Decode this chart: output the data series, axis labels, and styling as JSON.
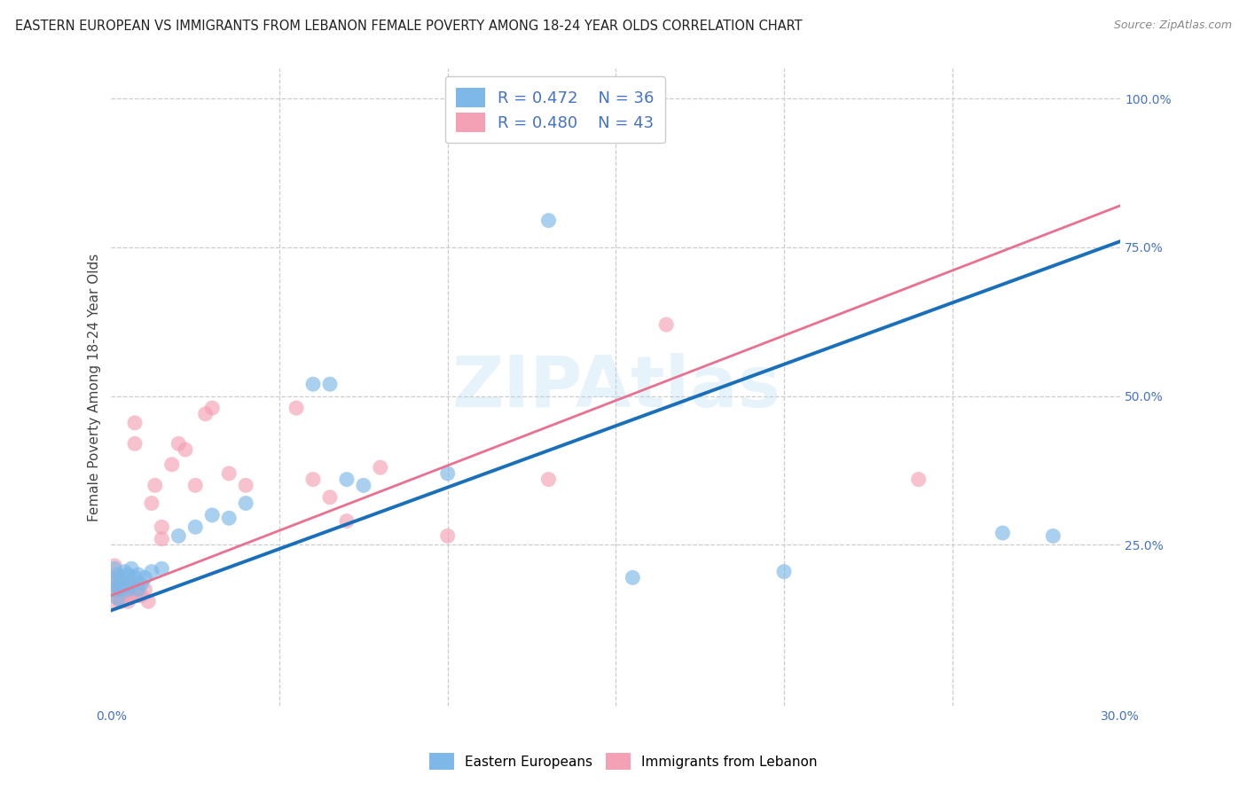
{
  "title": "EASTERN EUROPEAN VS IMMIGRANTS FROM LEBANON FEMALE POVERTY AMONG 18-24 YEAR OLDS CORRELATION CHART",
  "source": "Source: ZipAtlas.com",
  "ylabel": "Female Poverty Among 18-24 Year Olds",
  "xlim": [
    0.0,
    0.3
  ],
  "ylim": [
    -0.02,
    1.05
  ],
  "yticks_right": [
    0.25,
    0.5,
    0.75,
    1.0
  ],
  "ytick_labels_right": [
    "25.0%",
    "50.0%",
    "75.0%",
    "100.0%"
  ],
  "blue_color": "#7db8e8",
  "pink_color": "#f4a0b5",
  "blue_line_color": "#1a6fba",
  "pink_line_color": "#e87090",
  "blue_R": 0.472,
  "blue_N": 36,
  "pink_R": 0.48,
  "pink_N": 43,
  "watermark": "ZIPAtlas",
  "background_color": "#ffffff",
  "title_fontsize": 10.5,
  "axis_label_fontsize": 11,
  "tick_fontsize": 10,
  "legend_fontsize": 13,
  "blue_trend_x0": 0.0,
  "blue_trend_y0": 0.14,
  "blue_trend_x1": 0.3,
  "blue_trend_y1": 0.76,
  "pink_trend_x0": 0.0,
  "pink_trend_y0": 0.165,
  "pink_trend_x1": 0.3,
  "pink_trend_y1": 0.82,
  "blue_scatter_x": [
    0.001,
    0.001,
    0.001,
    0.002,
    0.002,
    0.002,
    0.003,
    0.003,
    0.004,
    0.004,
    0.005,
    0.005,
    0.006,
    0.006,
    0.007,
    0.008,
    0.008,
    0.009,
    0.01,
    0.012,
    0.015,
    0.02,
    0.025,
    0.03,
    0.035,
    0.04,
    0.06,
    0.065,
    0.07,
    0.075,
    0.1,
    0.13,
    0.155,
    0.2,
    0.265,
    0.28
  ],
  "blue_scatter_y": [
    0.175,
    0.19,
    0.21,
    0.16,
    0.18,
    0.2,
    0.175,
    0.195,
    0.18,
    0.205,
    0.175,
    0.2,
    0.185,
    0.21,
    0.195,
    0.175,
    0.2,
    0.185,
    0.195,
    0.205,
    0.21,
    0.265,
    0.28,
    0.3,
    0.295,
    0.32,
    0.52,
    0.52,
    0.36,
    0.35,
    0.37,
    0.795,
    0.195,
    0.205,
    0.27,
    0.265
  ],
  "pink_scatter_x": [
    0.001,
    0.001,
    0.001,
    0.001,
    0.002,
    0.002,
    0.002,
    0.003,
    0.003,
    0.004,
    0.004,
    0.005,
    0.005,
    0.006,
    0.006,
    0.007,
    0.007,
    0.008,
    0.008,
    0.009,
    0.01,
    0.011,
    0.012,
    0.013,
    0.015,
    0.015,
    0.018,
    0.02,
    0.022,
    0.025,
    0.028,
    0.03,
    0.035,
    0.04,
    0.055,
    0.06,
    0.065,
    0.07,
    0.08,
    0.1,
    0.13,
    0.165,
    0.24
  ],
  "pink_scatter_y": [
    0.155,
    0.175,
    0.195,
    0.215,
    0.16,
    0.175,
    0.19,
    0.155,
    0.175,
    0.165,
    0.18,
    0.155,
    0.175,
    0.165,
    0.18,
    0.42,
    0.455,
    0.165,
    0.185,
    0.165,
    0.175,
    0.155,
    0.32,
    0.35,
    0.26,
    0.28,
    0.385,
    0.42,
    0.41,
    0.35,
    0.47,
    0.48,
    0.37,
    0.35,
    0.48,
    0.36,
    0.33,
    0.29,
    0.38,
    0.265,
    0.36,
    0.62,
    0.36
  ]
}
